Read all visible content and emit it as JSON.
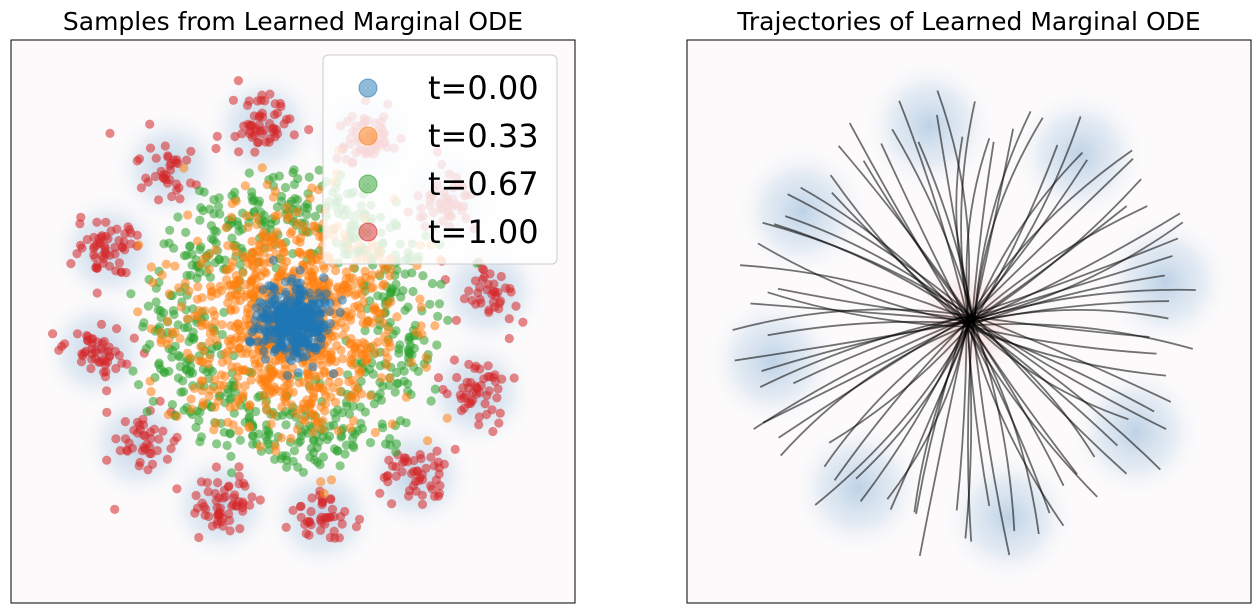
{
  "chart_data": [
    {
      "type": "scatter",
      "title": "Samples from Learned Marginal ODE",
      "xlabel": "",
      "ylabel": "",
      "axis_ticks": "none",
      "xlim": [
        -2.0,
        2.0
      ],
      "ylim": [
        -2.0,
        2.0
      ],
      "grid": false,
      "legend": "top-right",
      "background_density": "8 gaussian modes on a ring (light blue glow)",
      "series": [
        {
          "name": "t=0.00",
          "color": "#1f77b4",
          "ring_radius": 0.0,
          "spread": 0.12,
          "count": 380,
          "mode_count": 1
        },
        {
          "name": "t=0.33",
          "color": "#ff7f0e",
          "ring_radius": 0.0,
          "spread": 0.38,
          "count": 900,
          "mode_count": 1
        },
        {
          "name": "t=0.67",
          "color": "#2ca02c",
          "ring_radius": 0.82,
          "spread": 0.16,
          "count": 650,
          "mode_count": 1
        },
        {
          "name": "t=1.00",
          "color": "#d62728",
          "ring_radius": 1.4,
          "spread": 0.11,
          "count": 600,
          "mode_count": 12
        }
      ]
    },
    {
      "type": "line",
      "title": "Trajectories of Learned Marginal ODE",
      "xlabel": "",
      "ylabel": "",
      "axis_ticks": "none",
      "xlim": [
        -2.0,
        2.0
      ],
      "ylim": [
        -2.0,
        2.0
      ],
      "grid": false,
      "line_color": "#000000",
      "line_opacity": 0.55,
      "trajectory_count": 90,
      "start_point": [
        0.0,
        0.0
      ],
      "end_ring_radius": 1.5,
      "background_density": "red center mode, 8 blue modes on a ring"
    }
  ]
}
